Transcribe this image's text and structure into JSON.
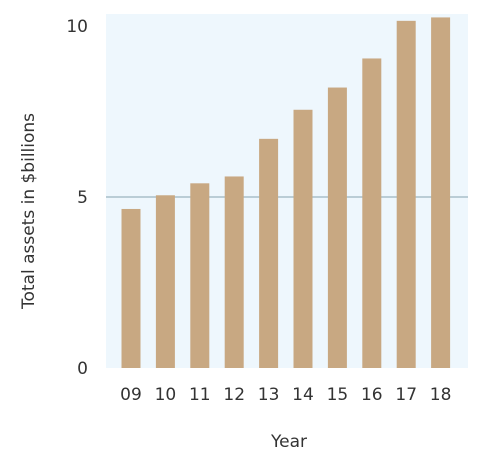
{
  "chart_data": {
    "type": "bar",
    "categories": [
      "09",
      "10",
      "11",
      "12",
      "13",
      "14",
      "15",
      "16",
      "17",
      "18"
    ],
    "values": [
      4.65,
      5.05,
      5.4,
      5.6,
      6.7,
      7.55,
      8.2,
      9.05,
      10.15,
      10.25
    ],
    "title": "",
    "xlabel": "Year",
    "ylabel": "Total assets in $billions",
    "ylim": [
      0,
      10.35
    ],
    "yticks": [
      0,
      5,
      10
    ],
    "ytick_labels": [
      "0",
      "5",
      "10"
    ],
    "grid": "horizontal line at 5",
    "legend": "none",
    "colors": {
      "bar": "#c8a882",
      "plot_background": "#eef7fd",
      "gridline": "#a9bfc9",
      "text": "#333333"
    }
  }
}
